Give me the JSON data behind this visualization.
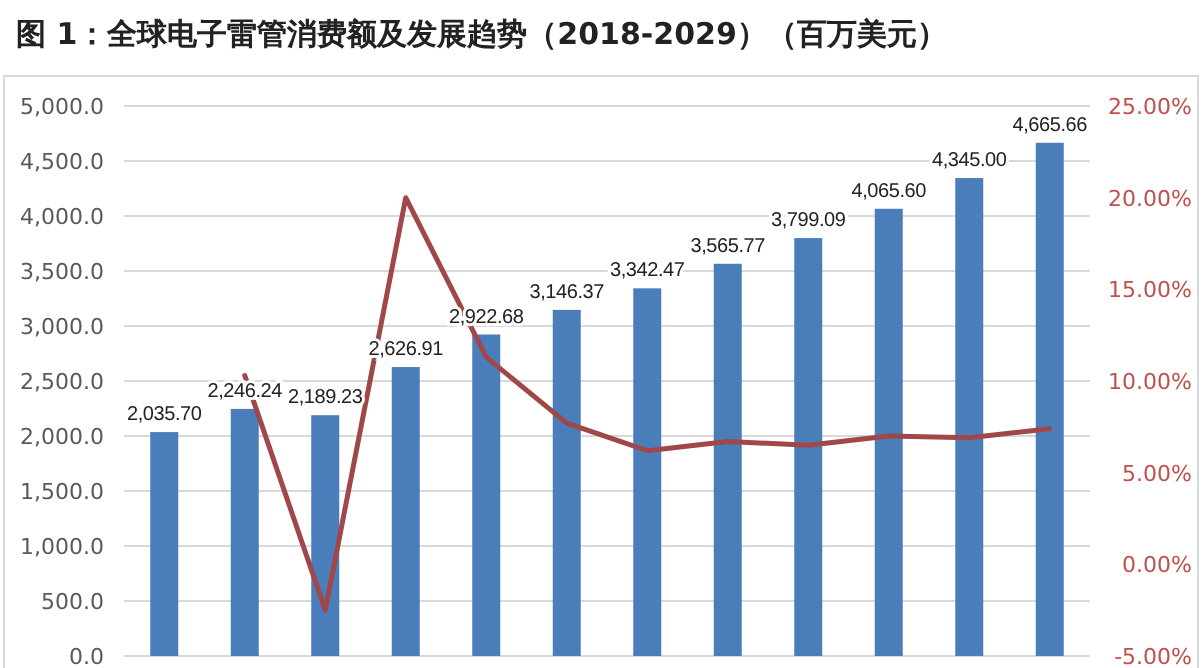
{
  "chart_data": {
    "type": "bar",
    "title": "图 1：全球电子雷管消费额及发展趋势（2018-2029）（百万美元）",
    "categories": [
      null,
      null,
      null,
      null,
      null,
      null,
      null,
      null,
      null,
      null,
      null,
      null
    ],
    "series": [
      {
        "color": "#4a7ebb",
        "values": [
          2035.7,
          2246.24,
          2189.23,
          2626.91,
          2922.68,
          3146.37,
          3342.47,
          3565.77,
          3799.09,
          4065.6,
          4345.0,
          4665.66
        ],
        "value_labels": [
          "2,035.70",
          "2,246.24",
          "2,189.23",
          "2,626.91",
          "2,922.68",
          "3,146.37",
          "3,342.47",
          "3,565.77",
          "3,799.09",
          "4,065.60",
          "4,345.00",
          "4,665.66"
        ]
      },
      {
        "type": "line",
        "axis": "y2",
        "color": "#a0474a",
        "values": [
          null,
          10.3,
          -2.5,
          20.0,
          11.3,
          7.7,
          6.2,
          6.7,
          6.5,
          7.0,
          6.9,
          7.4
        ]
      }
    ],
    "ylim": [
      0,
      5000
    ],
    "yticks": [
      {
        "value": 0,
        "label": "0.0"
      },
      {
        "value": 500,
        "label": "500.0"
      },
      {
        "value": 1000,
        "label": "1,000.0"
      },
      {
        "value": 1500,
        "label": "1,500.0"
      },
      {
        "value": 2000,
        "label": "2,000.0"
      },
      {
        "value": 2500,
        "label": "2,500.0"
      },
      {
        "value": 3000,
        "label": "3,000.0"
      },
      {
        "value": 3500,
        "label": "3,500.0"
      },
      {
        "value": 4000,
        "label": "4,000.0"
      },
      {
        "value": 4500,
        "label": "4,500.0"
      },
      {
        "value": 5000,
        "label": "5,000.0"
      }
    ],
    "y2lim": [
      -5,
      25
    ],
    "y2ticks": [
      {
        "value": -5,
        "label": "-5.00%"
      },
      {
        "value": 0,
        "label": "0.00%"
      },
      {
        "value": 5,
        "label": "5.00%"
      },
      {
        "value": 10,
        "label": "10.00%"
      },
      {
        "value": 15,
        "label": "15.00%"
      },
      {
        "value": 20,
        "label": "20.00%"
      },
      {
        "value": 25,
        "label": "25.00%"
      }
    ],
    "grid": "y"
  }
}
